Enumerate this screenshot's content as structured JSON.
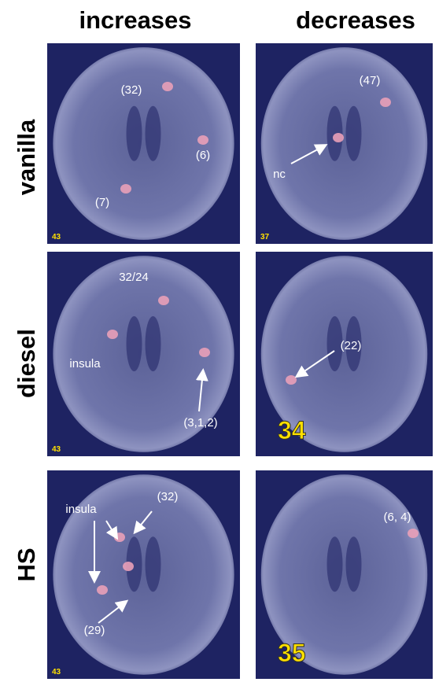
{
  "columns": [
    "increases",
    "decreases"
  ],
  "rows": [
    {
      "label": "vanilla",
      "panels": [
        {
          "slice": "43",
          "annotations": [
            "(32)",
            "(6)",
            "(7)"
          ]
        },
        {
          "slice": "37",
          "annotations": [
            "(47)",
            "nc"
          ]
        }
      ]
    },
    {
      "label": "diesel",
      "panels": [
        {
          "slice": "43",
          "annotations": [
            "32/24",
            "insula",
            "(3,1,2)"
          ]
        },
        {
          "slice": "34",
          "annotations": [
            "(22)"
          ]
        }
      ]
    },
    {
      "label": "HS",
      "panels": [
        {
          "slice": "43",
          "annotations": [
            "insula",
            "(32)",
            "(29)"
          ]
        },
        {
          "slice": "35",
          "annotations": [
            "(6, 4)"
          ]
        }
      ]
    }
  ]
}
